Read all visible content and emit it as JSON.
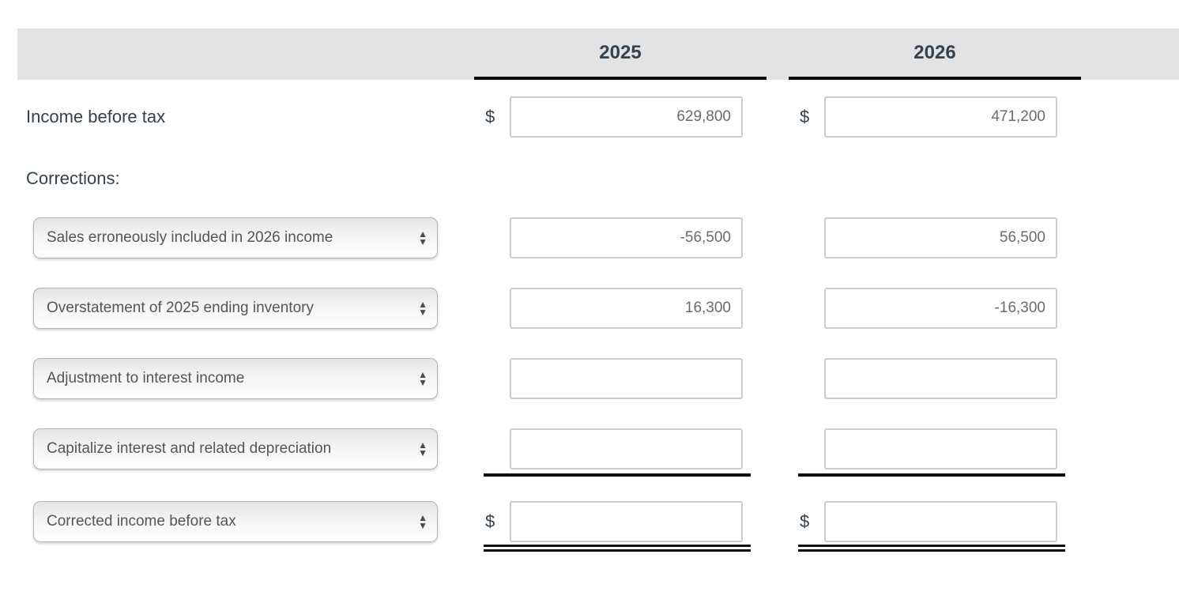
{
  "colors": {
    "ink": "#33424d",
    "muted": "#6b6b6b",
    "select-text": "#555555",
    "band": "#e3e3e3",
    "rule": "#0d0d0d",
    "input-border": "#cccccc",
    "select-border": "#b3b3b3"
  },
  "currency": {
    "symbol": "$"
  },
  "columns": [
    "2025",
    "2026"
  ],
  "income_row": {
    "label": "Income before tax",
    "v2025": "629,800",
    "v2026": "471,200"
  },
  "corrections_heading": "Corrections:",
  "correction_rows": [
    {
      "label": "Sales erroneously included in 2026 income",
      "v2025": "-56,500",
      "v2026": "56,500"
    },
    {
      "label": "Overstatement of 2025 ending inventory",
      "v2025": "16,300",
      "v2026": "-16,300"
    },
    {
      "label": "Adjustment to interest income",
      "v2025": "",
      "v2026": ""
    },
    {
      "label": "Capitalize interest and related depreciation",
      "v2025": "",
      "v2026": ""
    }
  ],
  "total_row": {
    "label": "Corrected income before tax",
    "v2025": "",
    "v2026": ""
  },
  "icons": {
    "arrow_up": "▲",
    "arrow_down": "▼"
  }
}
